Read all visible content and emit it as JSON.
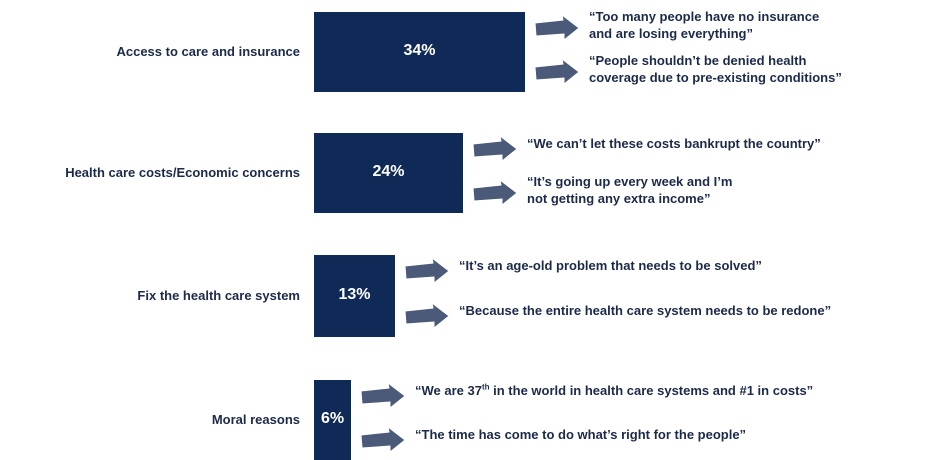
{
  "chart_data": {
    "type": "bar",
    "orientation": "horizontal",
    "categories": [
      "Access to care and insurance",
      "Health care costs/Economic concerns",
      "Fix the health care system",
      "Moral reasons"
    ],
    "values": [
      34,
      24,
      13,
      6
    ],
    "value_labels": [
      "34%",
      "24%",
      "13%",
      "6%"
    ],
    "bar_color": "#0f2a56",
    "arrow_color": "#4a5a78",
    "quotes": [
      [
        "“Too many people have no insurance\nand are losing everything”",
        "“People shouldn’t be denied health\ncoverage due to pre-existing conditions”"
      ],
      [
        "“We can’t let these costs bankrupt the country”",
        "“It’s going up every week and I’m\nnot getting any extra income”"
      ],
      [
        "“It’s an age-old problem that needs to be solved”",
        "“Because the entire health care system needs to be redone”"
      ],
      [
        {
          "before": "“We are 37",
          "sup": "th",
          "after": " in the world in health care systems and #1 in costs”"
        },
        "“The time has come to do what’s right for the people”"
      ]
    ],
    "title": "",
    "xlabel": "",
    "ylabel": "",
    "legend": "none",
    "grid": false
  }
}
